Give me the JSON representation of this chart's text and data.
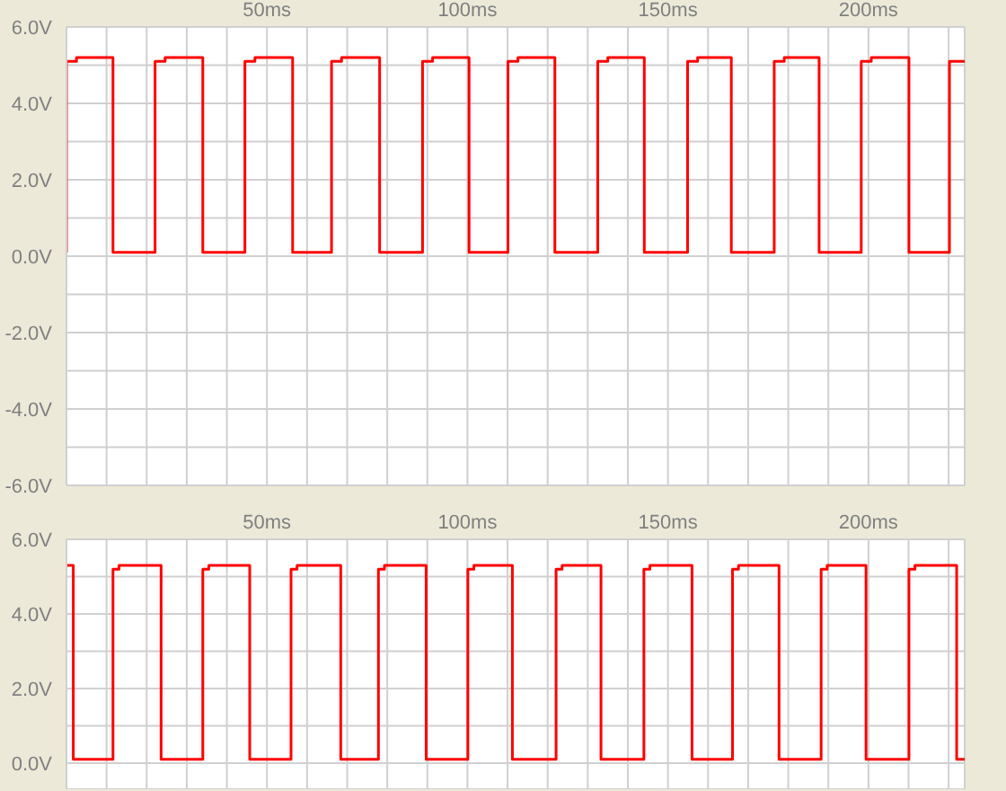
{
  "chart_data": [
    {
      "type": "line",
      "x": [
        0,
        0,
        2.5,
        2.5,
        11.6,
        11.6,
        22.1,
        22.1,
        24.6,
        24.6,
        34.0,
        34.0,
        44.5,
        44.5,
        47.0,
        47.0,
        56.4,
        56.4,
        66.1,
        66.1,
        68.6,
        68.6,
        78.1,
        78.1,
        88.8,
        88.8,
        91.3,
        91.3,
        100.4,
        100.4,
        110.1,
        110.1,
        112.6,
        112.6,
        121.8,
        121.8,
        132.5,
        132.5,
        135.0,
        135.0,
        144.1,
        144.1,
        154.9,
        154.9,
        157.4,
        157.4,
        165.8,
        165.8,
        176.5,
        176.5,
        179.0,
        179.0,
        187.7,
        187.7,
        198.2,
        198.2,
        200.7,
        200.7,
        210.1,
        210.1,
        220.2,
        220.2,
        224
      ],
      "series": [
        {
          "color": "#ff0000",
          "values": [
            0.1,
            5.1,
            5.1,
            5.2,
            5.2,
            0.1,
            0.1,
            5.1,
            5.1,
            5.2,
            5.2,
            0.1,
            0.1,
            5.1,
            5.1,
            5.2,
            5.2,
            0.1,
            0.1,
            5.1,
            5.1,
            5.2,
            5.2,
            0.1,
            0.1,
            5.1,
            5.1,
            5.2,
            5.2,
            0.1,
            0.1,
            5.1,
            5.1,
            5.2,
            5.2,
            0.1,
            0.1,
            5.1,
            5.1,
            5.2,
            5.2,
            0.1,
            0.1,
            5.1,
            5.1,
            5.2,
            5.2,
            0.1,
            0.1,
            5.1,
            5.1,
            5.2,
            5.2,
            0.1,
            0.1,
            5.1,
            5.1,
            5.2,
            5.2,
            0.1,
            0.1,
            5.1,
            5.1
          ]
        }
      ],
      "xlim": [
        0,
        224
      ],
      "xticks": [
        {
          "value": 0,
          "label": null
        },
        {
          "value": 10,
          "label": null
        },
        {
          "value": 20,
          "label": null
        },
        {
          "value": 30,
          "label": null
        },
        {
          "value": 40,
          "label": null
        },
        {
          "value": 50,
          "label": "50ms"
        },
        {
          "value": 60,
          "label": null
        },
        {
          "value": 70,
          "label": null
        },
        {
          "value": 80,
          "label": null
        },
        {
          "value": 90,
          "label": null
        },
        {
          "value": 100,
          "label": "100ms"
        },
        {
          "value": 110,
          "label": null
        },
        {
          "value": 120,
          "label": null
        },
        {
          "value": 130,
          "label": null
        },
        {
          "value": 140,
          "label": null
        },
        {
          "value": 150,
          "label": "150ms"
        },
        {
          "value": 160,
          "label": null
        },
        {
          "value": 170,
          "label": null
        },
        {
          "value": 180,
          "label": null
        },
        {
          "value": 190,
          "label": null
        },
        {
          "value": 200,
          "label": "200ms"
        },
        {
          "value": 210,
          "label": null
        },
        {
          "value": 220,
          "label": null
        }
      ],
      "ylim": [
        -6,
        6
      ],
      "yticks": [
        {
          "value": -6,
          "label": "-6.0V"
        },
        {
          "value": -5,
          "label": null
        },
        {
          "value": -4,
          "label": "-4.0V"
        },
        {
          "value": -3,
          "label": null
        },
        {
          "value": -2,
          "label": "-2.0V"
        },
        {
          "value": -1,
          "label": null
        },
        {
          "value": 0,
          "label": "0.0V"
        },
        {
          "value": 1,
          "label": null
        },
        {
          "value": 2,
          "label": "2.0V"
        },
        {
          "value": 3,
          "label": null
        },
        {
          "value": 4,
          "label": "4.0V"
        },
        {
          "value": 5,
          "label": null
        },
        {
          "value": 6,
          "label": "6.0V"
        }
      ],
      "grid": true
    },
    {
      "type": "line",
      "x": [
        0,
        1.7,
        1.7,
        11.6,
        11.6,
        13.1,
        13.1,
        23.6,
        23.6,
        34.0,
        34.0,
        35.5,
        35.5,
        45.7,
        45.7,
        56.0,
        56.0,
        57.5,
        57.5,
        68.4,
        68.4,
        77.8,
        77.8,
        79.3,
        79.3,
        89.7,
        89.7,
        100.1,
        100.1,
        101.6,
        101.6,
        111.2,
        111.2,
        122.1,
        122.1,
        123.6,
        123.6,
        133.3,
        133.3,
        144.0,
        144.0,
        145.5,
        145.5,
        156.0,
        156.0,
        166.1,
        166.1,
        167.6,
        167.6,
        177.7,
        177.7,
        188.2,
        188.2,
        189.7,
        189.7,
        199.4,
        199.4,
        210.1,
        210.1,
        211.6,
        211.6,
        222.0,
        222.0,
        224
      ],
      "series": [
        {
          "color": "#ff0000",
          "values": [
            5.3,
            5.3,
            0.1,
            0.1,
            5.2,
            5.2,
            5.3,
            5.3,
            0.1,
            0.1,
            5.2,
            5.2,
            5.3,
            5.3,
            0.1,
            0.1,
            5.2,
            5.2,
            5.3,
            5.3,
            0.1,
            0.1,
            5.2,
            5.2,
            5.3,
            5.3,
            0.1,
            0.1,
            5.2,
            5.2,
            5.3,
            5.3,
            0.1,
            0.1,
            5.2,
            5.2,
            5.3,
            5.3,
            0.1,
            0.1,
            5.2,
            5.2,
            5.3,
            5.3,
            0.1,
            0.1,
            5.2,
            5.2,
            5.3,
            5.3,
            0.1,
            0.1,
            5.2,
            5.2,
            5.3,
            5.3,
            0.1,
            0.1,
            5.2,
            5.2,
            5.3,
            5.3,
            0.1,
            0.1
          ]
        }
      ],
      "xlim": [
        0,
        224
      ],
      "xticks": [
        {
          "value": 0,
          "label": null
        },
        {
          "value": 10,
          "label": null
        },
        {
          "value": 20,
          "label": null
        },
        {
          "value": 30,
          "label": null
        },
        {
          "value": 40,
          "label": null
        },
        {
          "value": 50,
          "label": "50ms"
        },
        {
          "value": 60,
          "label": null
        },
        {
          "value": 70,
          "label": null
        },
        {
          "value": 80,
          "label": null
        },
        {
          "value": 90,
          "label": null
        },
        {
          "value": 100,
          "label": "100ms"
        },
        {
          "value": 110,
          "label": null
        },
        {
          "value": 120,
          "label": null
        },
        {
          "value": 130,
          "label": null
        },
        {
          "value": 140,
          "label": null
        },
        {
          "value": 150,
          "label": "150ms"
        },
        {
          "value": 160,
          "label": null
        },
        {
          "value": 170,
          "label": null
        },
        {
          "value": 180,
          "label": null
        },
        {
          "value": 190,
          "label": null
        },
        {
          "value": 200,
          "label": "200ms"
        },
        {
          "value": 210,
          "label": null
        },
        {
          "value": 220,
          "label": null
        }
      ],
      "ylim": [
        -0.7,
        6
      ],
      "yticks": [
        {
          "value": 0,
          "label": "0.0V"
        },
        {
          "value": 1,
          "label": null
        },
        {
          "value": 2,
          "label": "2.0V"
        },
        {
          "value": 3,
          "label": null
        },
        {
          "value": 4,
          "label": "4.0V"
        },
        {
          "value": 5,
          "label": null
        },
        {
          "value": 6,
          "label": "6.0V"
        }
      ],
      "grid": true
    }
  ]
}
